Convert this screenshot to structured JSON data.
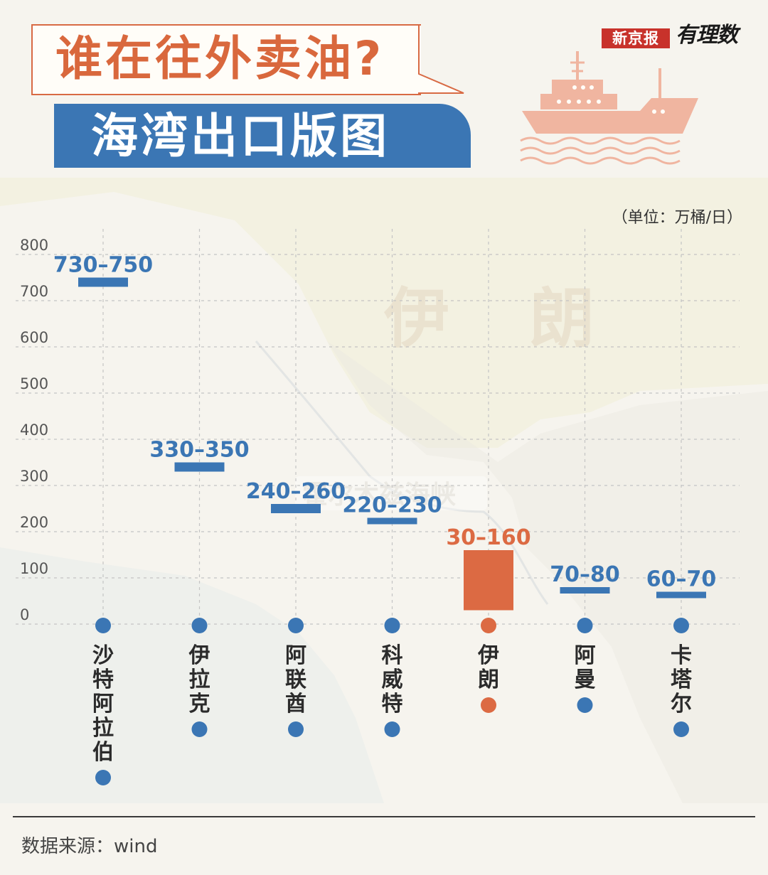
{
  "header": {
    "title": "谁在往外卖油?",
    "subtitle": "海湾出口版图",
    "brand_primary": "新京报",
    "brand_secondary": "有理数",
    "ship_icon": "oil-tanker-icon"
  },
  "unit_label": "（单位：万桶/日）",
  "map_labels": {
    "country": "伊 朗",
    "strait": "霍尔木兹海峡"
  },
  "colors": {
    "primary_blue": "#3b76b4",
    "accent_orange": "#dc6a43",
    "title_orange": "#d9683d",
    "brand_red": "#c8322b"
  },
  "chart_data": {
    "type": "bar",
    "title": "",
    "xlabel": "",
    "ylabel": "",
    "ylim": [
      0,
      800
    ],
    "yticks": [
      0,
      100,
      200,
      300,
      400,
      500,
      600,
      700,
      800
    ],
    "grid": true,
    "categories": [
      "沙特阿拉伯",
      "伊拉克",
      "阿联酋",
      "科威特",
      "伊朗",
      "阿曼",
      "卡塔尔"
    ],
    "ranges": [
      {
        "low": 730,
        "high": 750,
        "label": "730–750",
        "highlight": false
      },
      {
        "low": 330,
        "high": 350,
        "label": "330–350",
        "highlight": false
      },
      {
        "low": 240,
        "high": 260,
        "label": "240–260",
        "highlight": false
      },
      {
        "low": 220,
        "high": 230,
        "label": "220–230",
        "highlight": false
      },
      {
        "low": 30,
        "high": 160,
        "label": "30–160",
        "highlight": true
      },
      {
        "low": 70,
        "high": 80,
        "label": "70–80",
        "highlight": false
      },
      {
        "low": 60,
        "high": 70,
        "label": "60–70",
        "highlight": false
      }
    ]
  },
  "footer": {
    "source": "数据来源：wind"
  }
}
